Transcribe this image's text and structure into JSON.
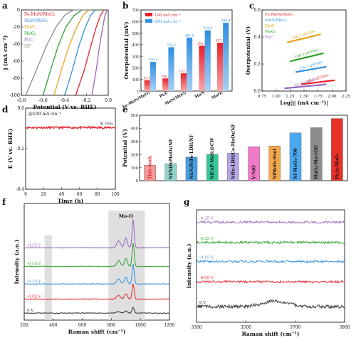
{
  "colors": {
    "red": "#e8202a",
    "blue": "#2f8fe0",
    "orange": "#e8a21c",
    "green": "#2ca02c",
    "purple": "#9467bd",
    "gray": "#8c8c8c",
    "dark": "#333333",
    "bar_red_light": "#f6a8a8",
    "bar_blue_light": "#a8cff4"
  },
  "panels": {
    "a": {
      "letter": "a"
    },
    "b": {
      "letter": "b"
    },
    "c": {
      "letter": "c"
    },
    "d": {
      "letter": "d"
    },
    "e": {
      "letter": "e"
    },
    "f": {
      "letter": "f"
    },
    "g": {
      "letter": "g"
    }
  },
  "chart_data": [
    {
      "id": "a",
      "type": "line",
      "title": "",
      "xlabel": "Potential (V vs. RHE)",
      "ylabel": "j (mA cm⁻²)",
      "xlim": [
        -0.8,
        0.0
      ],
      "ylim": [
        -100,
        0
      ],
      "xticks": [
        "-0.8",
        "-0.6",
        "-0.4",
        "-0.2",
        "0.0"
      ],
      "yticks": [
        "-100",
        "-80",
        "-60",
        "-40",
        "-20",
        "0"
      ],
      "series": [
        {
          "name": "Fe-MoN/MoO₂",
          "color": "red",
          "x": [
            -0.3,
            -0.22,
            -0.16,
            -0.11,
            -0.07,
            -0.04
          ],
          "y": [
            -100,
            -70,
            -42,
            -20,
            -6,
            0
          ]
        },
        {
          "name": "MoN/MoO₂",
          "color": "blue",
          "x": [
            -0.4,
            -0.33,
            -0.27,
            -0.21,
            -0.16,
            -0.12
          ],
          "y": [
            -100,
            -70,
            -42,
            -20,
            -6,
            0
          ]
        },
        {
          "name": "MoN",
          "color": "orange",
          "x": [
            -0.5,
            -0.43,
            -0.36,
            -0.29,
            -0.23,
            -0.18
          ],
          "y": [
            -100,
            -70,
            -42,
            -20,
            -6,
            0
          ]
        },
        {
          "name": "MoO₂",
          "color": "green",
          "x": [
            -0.6,
            -0.53,
            -0.46,
            -0.39,
            -0.31,
            -0.24
          ],
          "y": [
            -100,
            -70,
            -42,
            -20,
            -6,
            0
          ]
        },
        {
          "name": "Pt/C",
          "color": "purple",
          "x": [
            -0.15,
            -0.11,
            -0.08,
            -0.05,
            -0.03,
            -0.01
          ],
          "y": [
            -100,
            -70,
            -42,
            -20,
            -6,
            0
          ]
        },
        {
          "name": "NF",
          "color": "gray",
          "x": [
            -0.76,
            -0.66,
            -0.57,
            -0.48,
            -0.4,
            -0.32
          ],
          "y": [
            -100,
            -70,
            -42,
            -20,
            -6,
            0
          ]
        }
      ]
    },
    {
      "id": "b",
      "type": "bar",
      "xlabel": "",
      "ylabel": "Overpotential (mV)",
      "ylim": [
        0,
        700
      ],
      "yticks": [
        "0",
        "100",
        "200",
        "300",
        "400",
        "500",
        "600",
        "700"
      ],
      "categories": [
        "Fe-MoN/MoO₂",
        "Pt/C",
        "MoN/MoO₂",
        "MoN",
        "MoO₂"
      ],
      "series": [
        {
          "name": "100 mA cm⁻²",
          "color": "red",
          "values": [
            92.8,
            108.9,
            152.8,
            391.2,
            417.5
          ],
          "labels": [
            "92.8",
            "108.9",
            "152.8",
            "391.2",
            "417.5"
          ]
        },
        {
          "name": "500 mA cm⁻²",
          "color": "blue",
          "values": [
            250.9,
            378.2,
            461.5,
            523.9,
            589.4
          ],
          "labels": [
            "250.9",
            "378.2",
            "461.5",
            "523.9",
            "589.4"
          ]
        }
      ]
    },
    {
      "id": "c",
      "type": "scatter",
      "xlabel": "Log|j| (mA cm⁻²)|",
      "ylabel": "Overpotential (V)",
      "xlim": [
        0.75,
        2.25
      ],
      "ylim": [
        0.0,
        0.6
      ],
      "xticks": [
        "0.75",
        "1.00",
        "1.25",
        "1.50",
        "1.75",
        "2.00",
        "2.25"
      ],
      "yticks": [
        "0.0",
        "0.2",
        "0.4",
        "0.6"
      ],
      "series": [
        {
          "name": "Fe-MoN/MoO₂",
          "color": "red",
          "x_range": [
            1.45,
            2.05
          ],
          "y_range": [
            0.05,
            0.08
          ],
          "annotation": "49.2 mV/dec"
        },
        {
          "name": "MoN/MoO₂",
          "color": "blue",
          "x_range": [
            1.35,
            1.9
          ],
          "y_range": [
            0.14,
            0.18
          ],
          "annotation": "115.2 mV/dec"
        },
        {
          "name": "MoN",
          "color": "orange",
          "x_range": [
            1.2,
            1.8
          ],
          "y_range": [
            0.36,
            0.42
          ],
          "annotation": "106.5 mV/dec"
        },
        {
          "name": "MoO₂",
          "color": "green",
          "x_range": [
            1.25,
            1.85
          ],
          "y_range": [
            0.22,
            0.28
          ],
          "annotation": "108.3 mV/dec"
        },
        {
          "name": "Pt/C",
          "color": "purple",
          "x_range": [
            1.15,
            1.9
          ],
          "y_range": [
            0.02,
            0.05
          ],
          "annotation": "34.6 mV/dec"
        }
      ]
    },
    {
      "id": "d",
      "type": "line",
      "xlabel": "Time (h)",
      "ylabel": "E (V vs. RHE)",
      "xlim": [
        0,
        100
      ],
      "ylim": [
        -0.4,
        0.0
      ],
      "xticks": [
        "0",
        "20",
        "40",
        "60",
        "80",
        "100"
      ],
      "yticks": [
        "-0.4",
        "-0.2",
        "0.0"
      ],
      "annotation_top": "@100 mA cm⁻²",
      "annotation_line": "91.05%",
      "series": [
        {
          "name": "",
          "color": "red",
          "x": [
            0,
            10,
            20,
            30,
            40,
            50,
            60,
            70,
            80,
            90,
            100
          ],
          "y": [
            -0.095,
            -0.097,
            -0.096,
            -0.098,
            -0.096,
            -0.097,
            -0.098,
            -0.096,
            -0.097,
            -0.098,
            -0.097
          ]
        }
      ]
    },
    {
      "id": "e",
      "type": "bar",
      "xlabel": "",
      "ylabel": "Potential (V)",
      "ylim": [
        0,
        500
      ],
      "yticks": [
        "0",
        "100",
        "200",
        "300",
        "400",
        "500"
      ],
      "categories": [
        "This work",
        "Ni/NiFeMoOx/NF",
        "Ni₃N/NiFe-LDH/NF",
        "NiCoP-MoS₂@CW",
        "NiFe-LDH/Co-MoOx/NF",
        "V-NiO",
        "NiMoO₂-Svet",
        "Ni-MoO₃-700",
        "MoO₂-Mo-rGO",
        "Pt₂/s-MoO₂"
      ],
      "values": [
        118,
        130,
        180,
        200,
        210,
        260,
        265,
        365,
        405,
        475
      ],
      "colors": [
        "#f49a9a",
        "#8fd3cc",
        "#4a9fe0",
        "#35c79a",
        "#b7a6e8",
        "#f07ac8",
        "#f4a74a",
        "#4aa8f0",
        "#8c8c8c",
        "#e8312a"
      ]
    },
    {
      "id": "f",
      "type": "line",
      "xlabel": "Raman shift (cm⁻¹)",
      "ylabel": "Intensity (a.u.)",
      "xlim": [
        200,
        1200
      ],
      "xticks": [
        "200",
        "400",
        "600",
        "800",
        "1000",
        "1200"
      ],
      "annotation": "Mo-O",
      "series": [
        {
          "name": "-0.35 V",
          "color": "purple"
        },
        {
          "name": "-0.25 V",
          "color": "green"
        },
        {
          "name": "-0.15 V",
          "color": "blue"
        },
        {
          "name": "-0.05 V",
          "color": "red"
        },
        {
          "name": "0 V",
          "color": "dark"
        }
      ]
    },
    {
      "id": "g",
      "type": "line",
      "xlabel": "Raman shift (cm⁻¹)",
      "ylabel": "Intensity (a.u.)",
      "xlim": [
        3300,
        3900
      ],
      "xticks": [
        "3300",
        "3500",
        "3700",
        "3900"
      ],
      "series": [
        {
          "name": "-0.35 V",
          "color": "purple"
        },
        {
          "name": "-0.25 V",
          "color": "green"
        },
        {
          "name": "-0.15 V",
          "color": "blue"
        },
        {
          "name": "-0.05 V",
          "color": "red"
        },
        {
          "name": "0 V",
          "color": "dark"
        }
      ]
    }
  ]
}
